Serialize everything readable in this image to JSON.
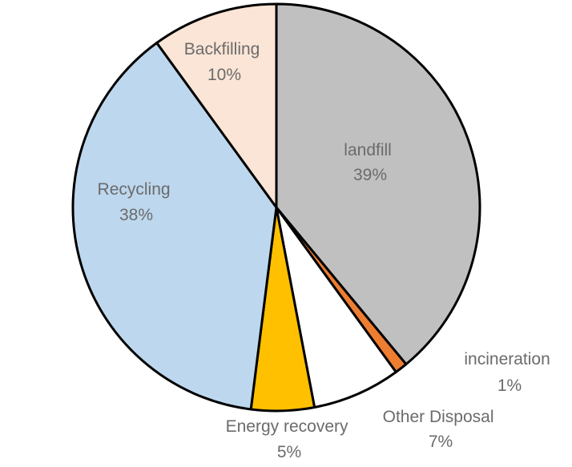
{
  "chart_data": {
    "type": "pie",
    "title": "",
    "slices": [
      {
        "label": "landfill",
        "value": 39,
        "value_label": "39%",
        "color": "#c0c0c0"
      },
      {
        "label": "incineration",
        "value": 1,
        "value_label": "1%",
        "color": "#ed7d31"
      },
      {
        "label": "Other Disposal",
        "value": 7,
        "value_label": "7%",
        "color": "#ffffff"
      },
      {
        "label": "Energy recovery",
        "value": 5,
        "value_label": "5%",
        "color": "#ffc000"
      },
      {
        "label": "Recycling",
        "value": 38,
        "value_label": "38%",
        "color": "#bdd7ee"
      },
      {
        "label": "Backfilling",
        "value": 10,
        "value_label": "10%",
        "color": "#fbe5d6"
      }
    ],
    "start_angle": "12 o'clock",
    "direction": "clockwise",
    "legend": "none"
  }
}
